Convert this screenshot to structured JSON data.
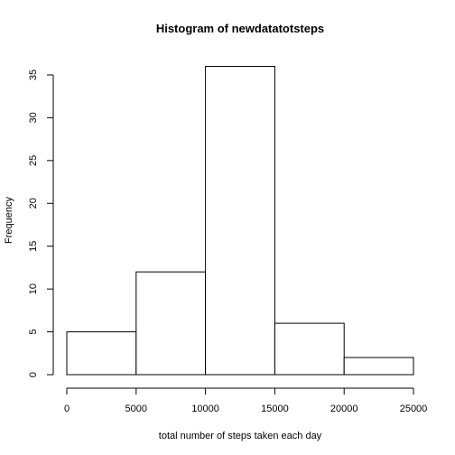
{
  "chart_data": {
    "type": "bar",
    "title": "Histogram of newdatatotsteps",
    "xlabel": "total number of steps taken each day",
    "ylabel": "Frequency",
    "bins": [
      {
        "start": 0,
        "end": 5000,
        "count": 5
      },
      {
        "start": 5000,
        "end": 10000,
        "count": 12
      },
      {
        "start": 10000,
        "end": 15000,
        "count": 36
      },
      {
        "start": 15000,
        "end": 20000,
        "count": 6
      },
      {
        "start": 20000,
        "end": 25000,
        "count": 2
      }
    ],
    "xlim": [
      0,
      25000
    ],
    "ylim": [
      0,
      35
    ],
    "xticks": [
      "0",
      "5000",
      "10000",
      "15000",
      "20000",
      "25000"
    ],
    "yticks": [
      "0",
      "5",
      "10",
      "15",
      "20",
      "25",
      "30",
      "35"
    ],
    "grid": false,
    "bar_fill": "#ffffff",
    "bar_stroke": "#000000"
  }
}
